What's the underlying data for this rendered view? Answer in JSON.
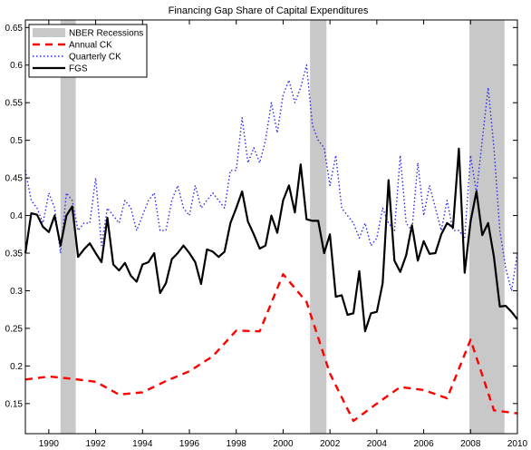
{
  "chart_data": {
    "type": "line",
    "title": "Financing Gap Share of Capital Expenditures",
    "xlabel": "",
    "ylabel": "",
    "xlim": [
      1989,
      2010
    ],
    "ylim": [
      0.11,
      0.66
    ],
    "x_ticks": [
      1990,
      1992,
      1994,
      1996,
      1998,
      2000,
      2002,
      2004,
      2006,
      2008,
      2010
    ],
    "x_tick_labels": [
      "1990",
      "1992",
      "1994",
      "1996",
      "1998",
      "2000",
      "2002",
      "2004",
      "2006",
      "2008",
      "2010"
    ],
    "y_ticks": [
      0.15,
      0.2,
      0.25,
      0.3,
      0.35,
      0.4,
      0.45,
      0.5,
      0.55,
      0.6,
      0.65
    ],
    "y_tick_labels": [
      "0.15",
      "0.2",
      "0.25",
      "0.3",
      "0.35",
      "0.4",
      "0.45",
      "0.5",
      "0.55",
      "0.6",
      "0.65"
    ],
    "grid": false,
    "legend_position": "top-left",
    "recessions": {
      "name": "NBER Recessions",
      "color": "#c8c8c8",
      "periods": [
        [
          1990.5,
          1991.15
        ],
        [
          2001.15,
          2001.85
        ],
        [
          2007.95,
          2009.45
        ]
      ]
    },
    "series": [
      {
        "name": "Annual CK",
        "color": "#ff0000",
        "style": "dashed",
        "x": [
          1989,
          1990,
          1991,
          1992,
          1993,
          1994,
          1995,
          1996,
          1997,
          1998,
          1999,
          2000,
          2001,
          2002,
          2003,
          2004,
          2005,
          2006,
          2007,
          2008,
          2009,
          2010
        ],
        "y": [
          0.182,
          0.186,
          0.183,
          0.179,
          0.162,
          0.165,
          0.18,
          0.193,
          0.213,
          0.247,
          0.246,
          0.322,
          0.285,
          0.19,
          0.127,
          0.15,
          0.172,
          0.168,
          0.157,
          0.235,
          0.141,
          0.137
        ]
      },
      {
        "name": "Quarterly CK",
        "color": "#2a2af0",
        "style": "dotted",
        "x": [
          1989,
          1989.25,
          1989.5,
          1989.75,
          1990,
          1990.25,
          1990.5,
          1990.75,
          1991,
          1991.25,
          1991.5,
          1991.75,
          1992,
          1992.25,
          1992.5,
          1992.75,
          1993,
          1993.25,
          1993.5,
          1993.75,
          1994,
          1994.25,
          1994.5,
          1994.75,
          1995,
          1995.25,
          1995.5,
          1995.75,
          1996,
          1996.25,
          1996.5,
          1996.75,
          1997,
          1997.25,
          1997.5,
          1997.75,
          1998,
          1998.25,
          1998.5,
          1998.75,
          1999,
          1999.25,
          1999.5,
          1999.75,
          2000,
          2000.25,
          2000.5,
          2000.75,
          2001,
          2001.25,
          2001.5,
          2001.75,
          2002,
          2002.25,
          2002.5,
          2002.75,
          2003,
          2003.25,
          2003.5,
          2003.75,
          2004,
          2004.25,
          2004.5,
          2004.75,
          2005,
          2005.25,
          2005.5,
          2005.75,
          2006,
          2006.25,
          2006.5,
          2006.75,
          2007,
          2007.25,
          2007.5,
          2007.75,
          2008,
          2008.25,
          2008.5,
          2008.75,
          2009,
          2009.25,
          2009.5,
          2009.75,
          2010
        ],
        "y": [
          0.46,
          0.42,
          0.41,
          0.39,
          0.43,
          0.41,
          0.35,
          0.43,
          0.42,
          0.38,
          0.39,
          0.39,
          0.45,
          0.36,
          0.41,
          0.4,
          0.39,
          0.42,
          0.41,
          0.38,
          0.4,
          0.42,
          0.43,
          0.38,
          0.38,
          0.42,
          0.44,
          0.41,
          0.4,
          0.44,
          0.41,
          0.42,
          0.43,
          0.42,
          0.41,
          0.46,
          0.46,
          0.53,
          0.47,
          0.49,
          0.47,
          0.5,
          0.55,
          0.51,
          0.56,
          0.58,
          0.55,
          0.57,
          0.6,
          0.52,
          0.5,
          0.49,
          0.44,
          0.48,
          0.41,
          0.4,
          0.39,
          0.37,
          0.39,
          0.36,
          0.37,
          0.41,
          0.39,
          0.38,
          0.48,
          0.39,
          0.38,
          0.47,
          0.4,
          0.44,
          0.41,
          0.38,
          0.42,
          0.38,
          0.38,
          0.37,
          0.48,
          0.43,
          0.5,
          0.57,
          0.49,
          0.38,
          0.33,
          0.3,
          0.35
        ]
      },
      {
        "name": "FGS",
        "color": "#000000",
        "style": "solid",
        "x": [
          1989,
          1989.25,
          1989.5,
          1989.75,
          1990,
          1990.25,
          1990.5,
          1990.75,
          1991,
          1991.25,
          1991.5,
          1991.75,
          1992,
          1992.25,
          1992.5,
          1992.75,
          1993,
          1993.25,
          1993.5,
          1993.75,
          1994,
          1994.25,
          1994.5,
          1994.75,
          1995,
          1995.25,
          1995.5,
          1995.75,
          1996,
          1996.25,
          1996.5,
          1996.75,
          1997,
          1997.25,
          1997.5,
          1997.75,
          1998,
          1998.25,
          1998.5,
          1998.75,
          1999,
          1999.25,
          1999.5,
          1999.75,
          2000,
          2000.25,
          2000.5,
          2000.75,
          2001,
          2001.25,
          2001.5,
          2001.75,
          2002,
          2002.25,
          2002.5,
          2002.75,
          2003,
          2003.25,
          2003.5,
          2003.75,
          2004,
          2004.25,
          2004.5,
          2004.75,
          2005,
          2005.25,
          2005.5,
          2005.75,
          2006,
          2006.25,
          2006.5,
          2006.75,
          2007,
          2007.25,
          2007.5,
          2007.75,
          2008,
          2008.25,
          2008.5,
          2008.75,
          2009,
          2009.25,
          2009.5,
          2009.75,
          2010
        ],
        "y": [
          0.35,
          0.403,
          0.401,
          0.385,
          0.378,
          0.4,
          0.36,
          0.4,
          0.412,
          0.345,
          0.355,
          0.363,
          0.35,
          0.338,
          0.397,
          0.335,
          0.327,
          0.337,
          0.32,
          0.312,
          0.335,
          0.338,
          0.35,
          0.297,
          0.31,
          0.342,
          0.35,
          0.36,
          0.35,
          0.338,
          0.309,
          0.355,
          0.352,
          0.345,
          0.352,
          0.39,
          0.41,
          0.432,
          0.392,
          0.375,
          0.356,
          0.36,
          0.4,
          0.377,
          0.42,
          0.44,
          0.404,
          0.468,
          0.395,
          0.393,
          0.393,
          0.35,
          0.375,
          0.292,
          0.294,
          0.268,
          0.27,
          0.326,
          0.246,
          0.27,
          0.272,
          0.31,
          0.447,
          0.34,
          0.325,
          0.347,
          0.387,
          0.34,
          0.366,
          0.349,
          0.35,
          0.375,
          0.39,
          0.384,
          0.489,
          0.324,
          0.392,
          0.432,
          0.374,
          0.39,
          0.345,
          0.279,
          0.28,
          0.272,
          0.262
        ]
      }
    ]
  }
}
